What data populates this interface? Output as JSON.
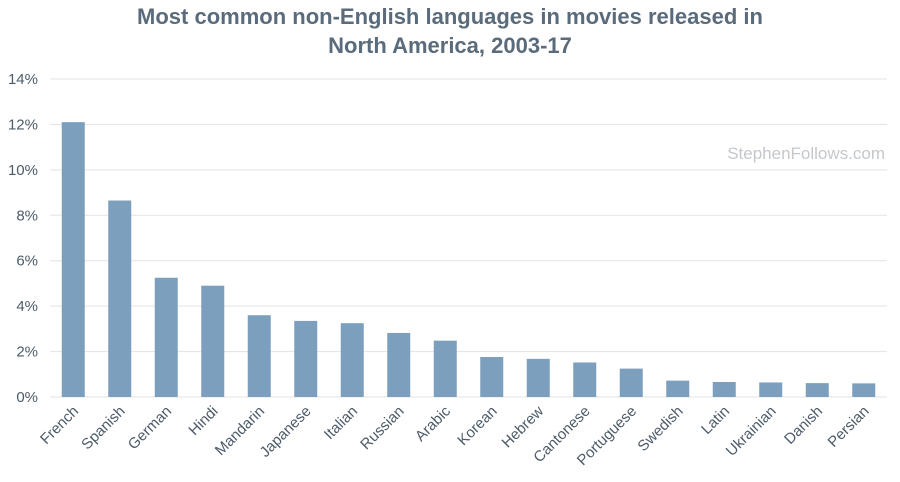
{
  "chart_data": {
    "type": "bar",
    "title_lines": [
      "Most common non-English languages in movies released in",
      "North America, 2003-17"
    ],
    "xlabel": "",
    "ylabel": "",
    "categories": [
      "French",
      "Spanish",
      "German",
      "Hindi",
      "Mandarin",
      "Japanese",
      "Italian",
      "Russian",
      "Arabic",
      "Korean",
      "Hebrew",
      "Cantonese",
      "Portuguese",
      "Swedish",
      "Latin",
      "Ukrainian",
      "Danish",
      "Persian"
    ],
    "values": [
      12.1,
      8.65,
      5.25,
      4.9,
      3.6,
      3.35,
      3.25,
      2.82,
      2.48,
      1.76,
      1.68,
      1.52,
      1.25,
      0.72,
      0.66,
      0.64,
      0.61,
      0.6
    ],
    "ylim": [
      0,
      14
    ],
    "yticks": [
      0,
      2,
      4,
      6,
      8,
      10,
      12,
      14
    ],
    "ytick_suffix": "%",
    "grid": true,
    "bar_color": "#7b9fbc",
    "grid_color": "#e3e3e3",
    "watermark": "StephenFollows.com"
  }
}
